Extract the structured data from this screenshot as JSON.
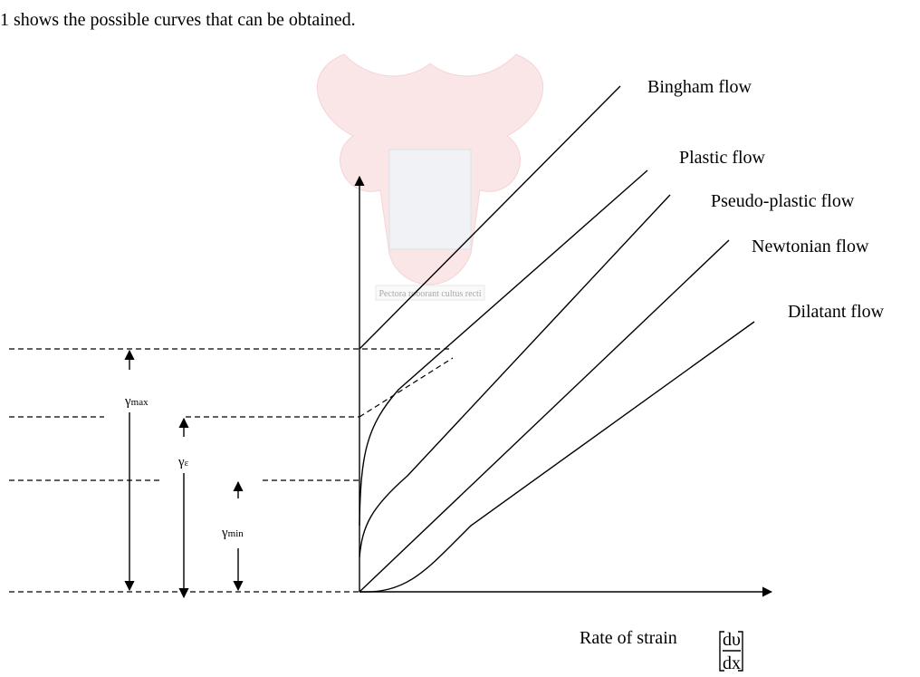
{
  "intro": "1 shows the possible curves that can be obtained.",
  "watermark": "Pectora roborant cultus recti",
  "curves": [
    "Bingham flow",
    "Plastic flow",
    "Pseudo-plastic flow",
    "Newtonian flow",
    "Dilatant flow"
  ],
  "stresses": [
    {
      "symbol": "γ",
      "subscript": "max"
    },
    {
      "symbol": "γ",
      "subscript": "ε"
    },
    {
      "symbol": "γ",
      "subscript": "min"
    }
  ],
  "x_axis": {
    "label": "Rate of strain",
    "numerator": "dυ",
    "denominator": "dx"
  }
}
